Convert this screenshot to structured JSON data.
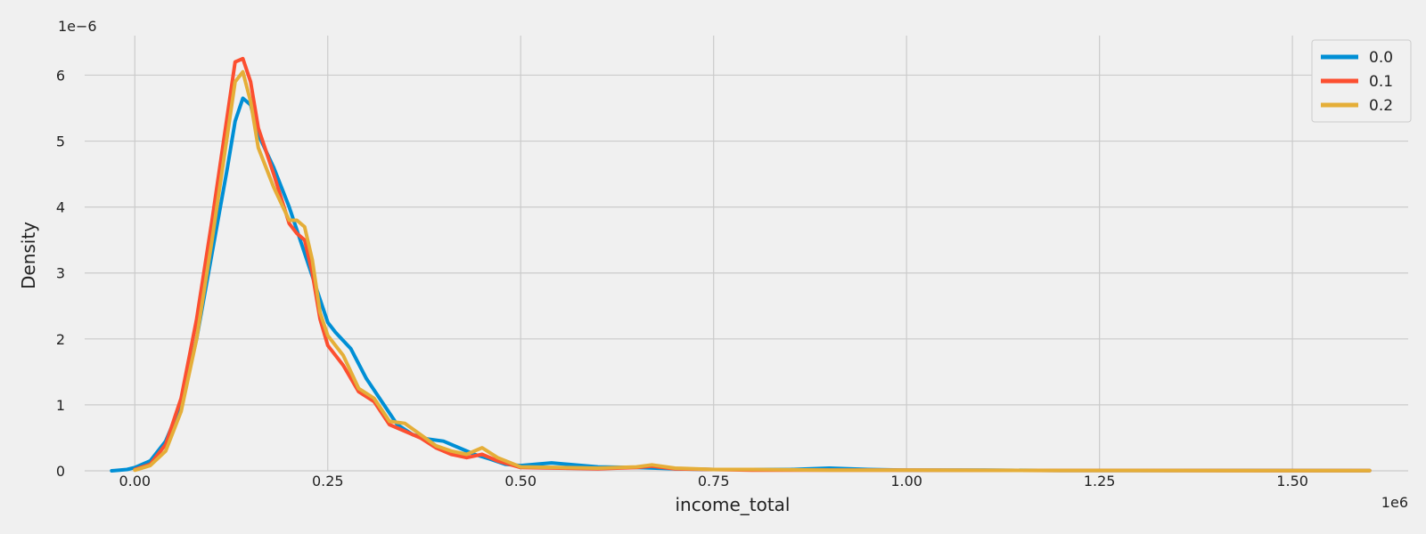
{
  "chart_data": {
    "type": "line",
    "title": "",
    "xlabel": "income_total",
    "ylabel": "Density",
    "x_offset_label": "1e6",
    "y_offset_label": "1e−6",
    "xlim": [
      -0.065,
      1.65
    ],
    "ylim": [
      0,
      6.6
    ],
    "xticks": [
      0.0,
      0.25,
      0.5,
      0.75,
      1.0,
      1.25,
      1.5
    ],
    "xtick_labels": [
      "0.00",
      "0.25",
      "0.50",
      "0.75",
      "1.00",
      "1.25",
      "1.50"
    ],
    "yticks": [
      0,
      1,
      2,
      3,
      4,
      5,
      6
    ],
    "ytick_labels": [
      "0",
      "1",
      "2",
      "3",
      "4",
      "5",
      "6"
    ],
    "grid": true,
    "legend_position": "top-right",
    "series": [
      {
        "name": "0.0",
        "color": "#008fd5",
        "points": [
          [
            -0.03,
            0.0
          ],
          [
            -0.01,
            0.02
          ],
          [
            0.0,
            0.05
          ],
          [
            0.02,
            0.15
          ],
          [
            0.04,
            0.45
          ],
          [
            0.06,
            1.0
          ],
          [
            0.08,
            2.0
          ],
          [
            0.1,
            3.3
          ],
          [
            0.12,
            4.6
          ],
          [
            0.13,
            5.3
          ],
          [
            0.14,
            5.65
          ],
          [
            0.15,
            5.55
          ],
          [
            0.16,
            5.1
          ],
          [
            0.18,
            4.6
          ],
          [
            0.2,
            4.0
          ],
          [
            0.22,
            3.3
          ],
          [
            0.24,
            2.6
          ],
          [
            0.25,
            2.25
          ],
          [
            0.26,
            2.1
          ],
          [
            0.28,
            1.85
          ],
          [
            0.3,
            1.4
          ],
          [
            0.32,
            1.05
          ],
          [
            0.34,
            0.7
          ],
          [
            0.36,
            0.55
          ],
          [
            0.38,
            0.48
          ],
          [
            0.4,
            0.45
          ],
          [
            0.42,
            0.35
          ],
          [
            0.44,
            0.25
          ],
          [
            0.46,
            0.18
          ],
          [
            0.48,
            0.1
          ],
          [
            0.5,
            0.08
          ],
          [
            0.52,
            0.1
          ],
          [
            0.54,
            0.12
          ],
          [
            0.56,
            0.1
          ],
          [
            0.6,
            0.06
          ],
          [
            0.65,
            0.05
          ],
          [
            0.7,
            0.03
          ],
          [
            0.75,
            0.02
          ],
          [
            0.8,
            0.02
          ],
          [
            0.85,
            0.02
          ],
          [
            0.9,
            0.04
          ],
          [
            0.95,
            0.02
          ],
          [
            1.0,
            0.01
          ],
          [
            1.1,
            0.01
          ],
          [
            1.2,
            0.005
          ],
          [
            1.4,
            0.005
          ],
          [
            1.6,
            0.003
          ]
        ]
      },
      {
        "name": "0.1",
        "color": "#fc4f30",
        "points": [
          [
            0.0,
            0.02
          ],
          [
            0.02,
            0.1
          ],
          [
            0.04,
            0.4
          ],
          [
            0.06,
            1.1
          ],
          [
            0.08,
            2.3
          ],
          [
            0.1,
            3.8
          ],
          [
            0.12,
            5.4
          ],
          [
            0.13,
            6.2
          ],
          [
            0.14,
            6.25
          ],
          [
            0.15,
            5.9
          ],
          [
            0.16,
            5.2
          ],
          [
            0.18,
            4.5
          ],
          [
            0.2,
            3.75
          ],
          [
            0.21,
            3.6
          ],
          [
            0.22,
            3.5
          ],
          [
            0.23,
            3.0
          ],
          [
            0.24,
            2.3
          ],
          [
            0.25,
            1.9
          ],
          [
            0.27,
            1.6
          ],
          [
            0.29,
            1.2
          ],
          [
            0.31,
            1.05
          ],
          [
            0.33,
            0.7
          ],
          [
            0.35,
            0.6
          ],
          [
            0.37,
            0.5
          ],
          [
            0.39,
            0.35
          ],
          [
            0.41,
            0.25
          ],
          [
            0.43,
            0.2
          ],
          [
            0.45,
            0.25
          ],
          [
            0.47,
            0.15
          ],
          [
            0.5,
            0.05
          ],
          [
            0.55,
            0.04
          ],
          [
            0.6,
            0.03
          ],
          [
            0.65,
            0.05
          ],
          [
            0.67,
            0.07
          ],
          [
            0.7,
            0.03
          ],
          [
            0.75,
            0.02
          ],
          [
            0.8,
            0.01
          ],
          [
            0.9,
            0.01
          ],
          [
            1.0,
            0.01
          ],
          [
            1.2,
            0.005
          ],
          [
            1.6,
            0.003
          ]
        ]
      },
      {
        "name": "0.2",
        "color": "#e5ae38",
        "points": [
          [
            0.0,
            0.01
          ],
          [
            0.02,
            0.08
          ],
          [
            0.04,
            0.3
          ],
          [
            0.06,
            0.9
          ],
          [
            0.08,
            2.0
          ],
          [
            0.1,
            3.5
          ],
          [
            0.12,
            5.1
          ],
          [
            0.13,
            5.9
          ],
          [
            0.14,
            6.05
          ],
          [
            0.15,
            5.6
          ],
          [
            0.16,
            4.9
          ],
          [
            0.18,
            4.3
          ],
          [
            0.2,
            3.8
          ],
          [
            0.21,
            3.8
          ],
          [
            0.22,
            3.7
          ],
          [
            0.23,
            3.2
          ],
          [
            0.24,
            2.4
          ],
          [
            0.25,
            2.05
          ],
          [
            0.27,
            1.75
          ],
          [
            0.29,
            1.25
          ],
          [
            0.31,
            1.1
          ],
          [
            0.33,
            0.75
          ],
          [
            0.35,
            0.72
          ],
          [
            0.37,
            0.55
          ],
          [
            0.39,
            0.38
          ],
          [
            0.41,
            0.3
          ],
          [
            0.43,
            0.25
          ],
          [
            0.45,
            0.35
          ],
          [
            0.47,
            0.2
          ],
          [
            0.5,
            0.06
          ],
          [
            0.55,
            0.05
          ],
          [
            0.6,
            0.04
          ],
          [
            0.65,
            0.06
          ],
          [
            0.67,
            0.09
          ],
          [
            0.7,
            0.04
          ],
          [
            0.75,
            0.02
          ],
          [
            0.8,
            0.02
          ],
          [
            0.9,
            0.01
          ],
          [
            1.0,
            0.01
          ],
          [
            1.2,
            0.005
          ],
          [
            1.6,
            0.003
          ]
        ]
      }
    ]
  }
}
